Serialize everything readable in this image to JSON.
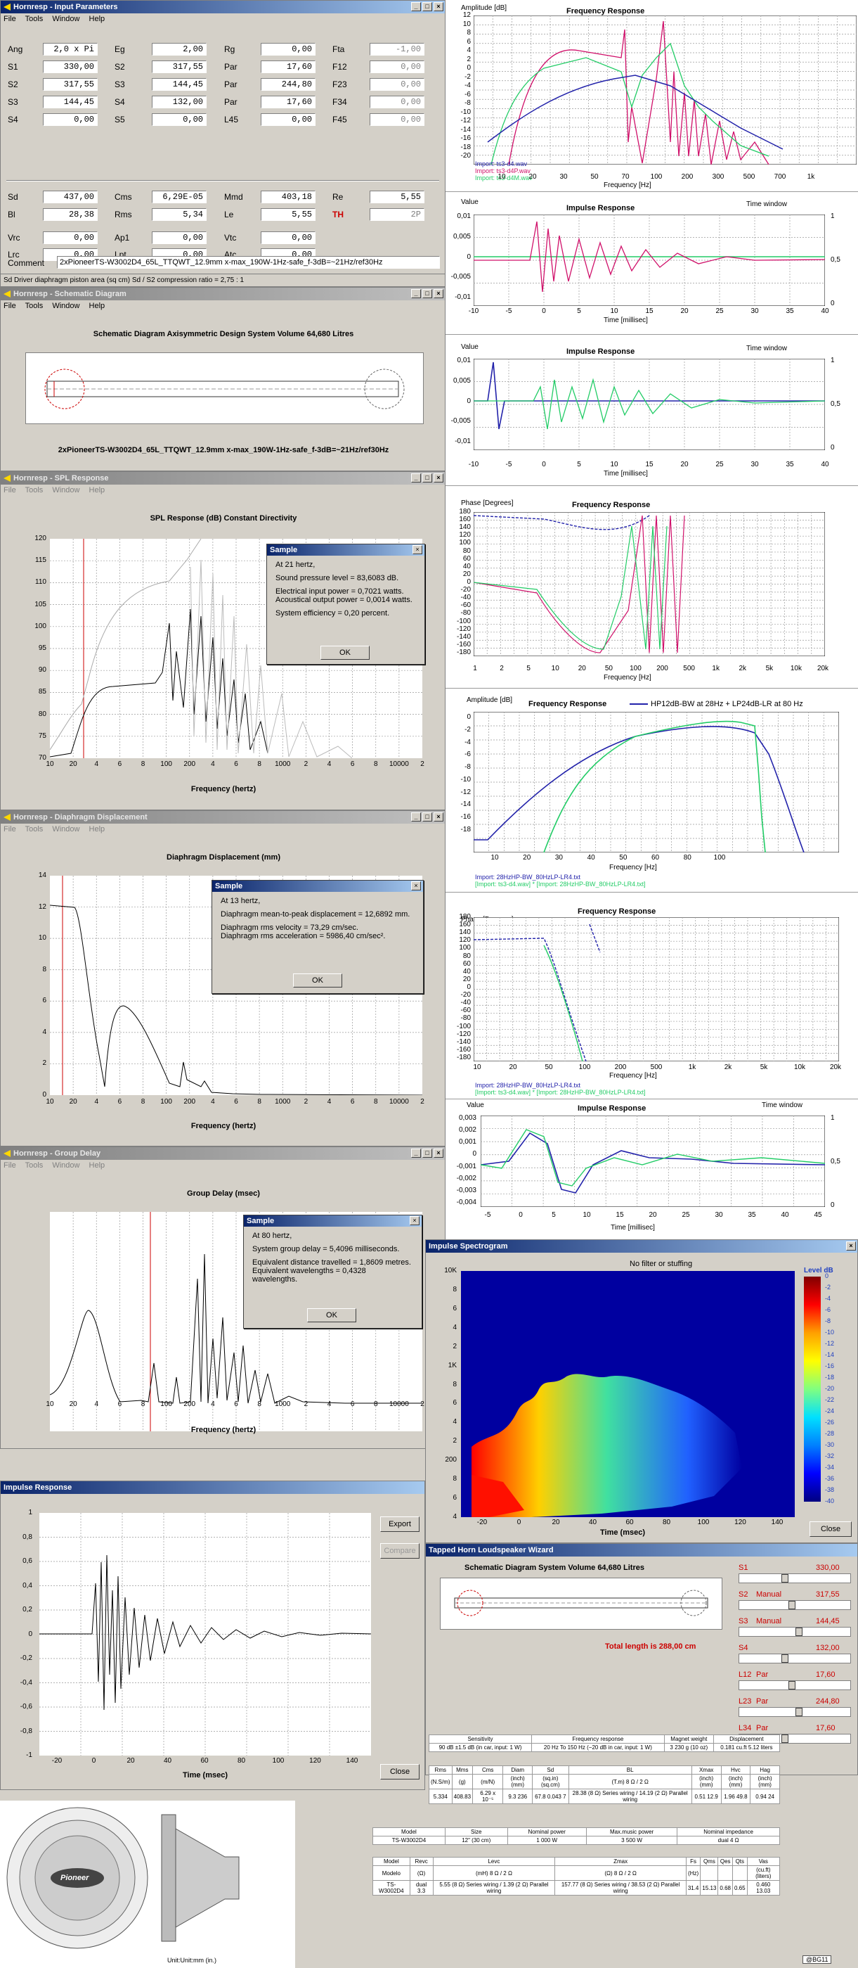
{
  "input_params": {
    "title": "Hornresp - Input Parameters",
    "menu": [
      "File",
      "Tools",
      "Window",
      "Help"
    ],
    "rows": [
      [
        [
          "Ang",
          "2,0 x Pi"
        ],
        [
          "Eg",
          "2,00"
        ],
        [
          "Rg",
          "0,00"
        ],
        [
          "Fta",
          "-1,00"
        ]
      ],
      [
        [
          "S1",
          "330,00"
        ],
        [
          "S2",
          "317,55"
        ],
        [
          "Par",
          "17,60"
        ],
        [
          "F12",
          "0,00"
        ]
      ],
      [
        [
          "S2",
          "317,55"
        ],
        [
          "S3",
          "144,45"
        ],
        [
          "Par",
          "244,80"
        ],
        [
          "F23",
          "0,00"
        ]
      ],
      [
        [
          "S3",
          "144,45"
        ],
        [
          "S4",
          "132,00"
        ],
        [
          "Par",
          "17,60"
        ],
        [
          "F34",
          "0,00"
        ]
      ],
      [
        [
          "S4",
          "0,00"
        ],
        [
          "S5",
          "0,00"
        ],
        [
          "L45",
          "0,00"
        ],
        [
          "F45",
          "0,00"
        ]
      ],
      [
        [
          "Sd",
          "437,00"
        ],
        [
          "Cms",
          "6,29E-05"
        ],
        [
          "Mmd",
          "403,18"
        ],
        [
          "Re",
          "5,55"
        ]
      ],
      [
        [
          "Bl",
          "28,38"
        ],
        [
          "Rms",
          "5,34"
        ],
        [
          "Le",
          "5,55"
        ],
        [
          "TH",
          "2P"
        ]
      ],
      [
        [
          "Vrc",
          "0,00"
        ],
        [
          "Ap1",
          "0,00"
        ],
        [
          "Vtc",
          "0,00"
        ]
      ],
      [
        [
          "Lrc",
          "0,00"
        ],
        [
          "Lpt",
          "0,00"
        ],
        [
          "Atc",
          "0,00"
        ]
      ]
    ],
    "comment_label": "Comment",
    "comment": "2xPioneerTS-W3002D4_65L_TTQWT_12.9mm x-max_190W-1Hz-safe_f-3dB=~21Hz/ref30Hz",
    "status": "Sd   Driver diaphragm piston area  (sq cm)   Sd / S2 compression ratio = 2,75 : 1"
  },
  "schematic": {
    "title": "Hornresp - Schematic Diagram",
    "menu": [
      "File",
      "Tools",
      "Window",
      "Help"
    ],
    "heading": "Schematic Diagram   Axisymmetric Design   System Volume 64,680 Litres",
    "caption": "2xPioneerTS-W3002D4_65L_TTQWT_12.9mm x-max_190W-1Hz-safe_f-3dB=~21Hz/ref30Hz"
  },
  "spl": {
    "title": "Hornresp - SPL Response",
    "menu": [
      "File",
      "Tools",
      "Window",
      "Help"
    ],
    "plot_title": "SPL Response  (dB)   Constant Directivity",
    "xlabel": "Frequency  (hertz)",
    "yticks": [
      "120",
      "115",
      "110",
      "105",
      "100",
      "95",
      "90",
      "85",
      "80",
      "75",
      "70"
    ],
    "xticks": [
      "10",
      "20",
      "4",
      "6",
      "8",
      "100",
      "200",
      "4",
      "6",
      "8",
      "1000",
      "2",
      "4",
      "6",
      "8",
      "10000",
      "2"
    ],
    "dialog": {
      "title": "Sample",
      "lines": [
        "At 21 hertz,",
        "Sound pressure level = 83,6083 dB.",
        "Electrical input power = 0,7021 watts.",
        "Acoustical output power = 0,0014 watts.",
        "System efficiency = 0,20 percent."
      ],
      "ok": "OK"
    }
  },
  "disp": {
    "title": "Hornresp - Diaphragm Displacement",
    "menu": [
      "File",
      "Tools",
      "Window",
      "Help"
    ],
    "plot_title": "Diaphragm Displacement  (mm)",
    "xlabel": "Frequency  (hertz)",
    "yticks": [
      "14",
      "12",
      "10",
      "8",
      "6",
      "4",
      "2",
      "0"
    ],
    "xticks": [
      "10",
      "20",
      "4",
      "6",
      "8",
      "100",
      "200",
      "4",
      "6",
      "8",
      "1000",
      "2",
      "4",
      "6",
      "8",
      "10000",
      "2"
    ],
    "dialog": {
      "title": "Sample",
      "lines": [
        "At 13 hertz,",
        "Diaphragm mean-to-peak displacement = 12,6892 mm.",
        "Diaphragm rms velocity = 73,29 cm/sec.",
        "Diaphragm rms acceleration = 5986,40 cm/sec²."
      ],
      "ok": "OK"
    }
  },
  "gd": {
    "title": "Hornresp - Group Delay",
    "menu": [
      "File",
      "Tools",
      "Window",
      "Help"
    ],
    "plot_title": "Group Delay  (msec)",
    "xlabel": "Frequency  (hertz)",
    "xticks": [
      "10",
      "20",
      "4",
      "6",
      "8",
      "100",
      "200",
      "4",
      "6",
      "8",
      "1000",
      "2",
      "4",
      "6",
      "8",
      "10000",
      "2"
    ],
    "dialog": {
      "title": "Sample",
      "lines": [
        "At 80 hertz,",
        "System group delay = 5,4096 milliseconds.",
        "Equivalent distance travelled = 1,8609 metres.",
        "Equivalent wavelengths = 0,4328 wavelengths."
      ],
      "ok": "OK"
    }
  },
  "ir": {
    "title": "Impulse Response",
    "yticks": [
      "1",
      "0,8",
      "0,6",
      "0,4",
      "0,2",
      "0",
      "-0,2",
      "-0,4",
      "-0,6",
      "-0,8",
      "-1"
    ],
    "xticks": [
      "-20",
      "0",
      "20",
      "40",
      "60",
      "80",
      "100",
      "120",
      "140"
    ],
    "xlabel": "Time  (msec)",
    "export": "Export",
    "compare": "Compare",
    "close": "Close"
  },
  "rew_fr": {
    "ylabel": "Amplitude [dB]",
    "title": "Frequency Response",
    "yticks": [
      "12",
      "10",
      "8",
      "6",
      "4",
      "2",
      "0",
      "-2",
      "-4",
      "-6",
      "-8",
      "-10",
      "-12",
      "-14",
      "-16",
      "-18",
      "-20"
    ],
    "xticks": [
      "10",
      "20",
      "30",
      "50",
      "70",
      "100",
      "200",
      "300",
      "500",
      "700",
      "1k"
    ],
    "xlabel": "Frequency [Hz]",
    "legend": [
      "Import: ts3-d4.wav",
      "Import: ts3-d4P.wav",
      "Import: ts3-d4M.wav"
    ]
  },
  "rew_ir1": {
    "ylabel": "Value",
    "title": "Impulse Response",
    "tw": "Time window",
    "yticks": [
      "0,01",
      "0,005",
      "0",
      "-0,005",
      "-0,01"
    ],
    "xticks": [
      "-10",
      "-5",
      "0",
      "5",
      "10",
      "15",
      "20",
      "25",
      "30",
      "35",
      "40"
    ],
    "xlabel": "Time [millisec]",
    "rticks": [
      "1",
      "0,5",
      "0"
    ]
  },
  "rew_ir2": {
    "ylabel": "Value",
    "title": "Impulse Response",
    "tw": "Time window",
    "yticks": [
      "0,01",
      "0,005",
      "0",
      "-0,005",
      "-0,01"
    ],
    "xticks": [
      "-10",
      "-5",
      "0",
      "5",
      "10",
      "15",
      "20",
      "25",
      "30",
      "35",
      "40"
    ],
    "xlabel": "Time [millisec]",
    "rticks": [
      "1",
      "0,5",
      "0"
    ]
  },
  "rew_phase1": {
    "ylabel": "Phase [Degrees]",
    "title": "Frequency Response",
    "yticks": [
      "180",
      "160",
      "140",
      "120",
      "100",
      "80",
      "60",
      "40",
      "20",
      "0",
      "-20",
      "-40",
      "-60",
      "-80",
      "-100",
      "-120",
      "-140",
      "-160",
      "-180"
    ],
    "xticks": [
      "1",
      "2",
      "5",
      "10",
      "20",
      "50",
      "100",
      "200",
      "500",
      "1k",
      "2k",
      "5k",
      "10k",
      "20k"
    ],
    "xlabel": "Frequency [Hz]"
  },
  "rew_fr2": {
    "ylabel": "Amplitude [dB]",
    "title": "Frequency Response",
    "legend_top": "HP12dB-BW at 28Hz + LP24dB-LR at 80 Hz",
    "yticks": [
      "0",
      "-2",
      "-4",
      "-6",
      "-8",
      "-10",
      "-12",
      "-14",
      "-16",
      "-18"
    ],
    "xticks": [
      "10",
      "20",
      "30",
      "40",
      "50",
      "60",
      "80",
      "100"
    ],
    "xlabel": "Frequency [Hz]",
    "legend": [
      "Import: 28HzHP-BW_80HzLP-LR4.txt",
      "[Import: ts3-d4.wav] * [Import: 28HzHP-BW_80HzLP-LR4.txt]"
    ]
  },
  "rew_phase2": {
    "ylabel": "Phase [Degrees]",
    "title": "Frequency Response",
    "yticks": [
      "180",
      "160",
      "140",
      "120",
      "100",
      "80",
      "60",
      "40",
      "20",
      "0",
      "-20",
      "-40",
      "-60",
      "-80",
      "-100",
      "-120",
      "-140",
      "-160",
      "-180"
    ],
    "xticks": [
      "10",
      "20",
      "50",
      "100",
      "200",
      "500",
      "1k",
      "2k",
      "5k",
      "10k",
      "20k"
    ],
    "xlabel": "Frequency [Hz]",
    "legend": [
      "Import: 28HzHP-BW_80HzLP-LR4.txt",
      "[Import: ts3-d4.wav] * [Import: 28HzHP-BW_80HzLP-LR4.txt]"
    ]
  },
  "rew_ir3": {
    "ylabel": "Value",
    "title": "Impulse Response",
    "tw": "Time window",
    "yticks": [
      "0,003",
      "0,002",
      "0,001",
      "0",
      "-0,001",
      "-0,002",
      "-0,003",
      "-0,004"
    ],
    "xticks": [
      "-5",
      "0",
      "5",
      "10",
      "15",
      "20",
      "25",
      "30",
      "35",
      "40",
      "45"
    ],
    "xlabel": "Time [millisec]",
    "rticks": [
      "1",
      "0,5",
      "0"
    ]
  },
  "spectro": {
    "title": "Impulse Spectrogram",
    "subtitle": "No filter or stuffing",
    "level_label": "Level  dB",
    "levels": [
      "0",
      "-2",
      "-4",
      "-6",
      "-8",
      "-10",
      "-12",
      "-14",
      "-16",
      "-18",
      "-20",
      "-22",
      "-24",
      "-26",
      "-28",
      "-30",
      "-32",
      "-34",
      "-36",
      "-38",
      "-40"
    ],
    "yticks": [
      "10K",
      "8",
      "6",
      "4",
      "2",
      "1K",
      "8",
      "6",
      "4",
      "2",
      "200",
      "8",
      "6",
      "4"
    ],
    "xticks": [
      "-20",
      "0",
      "20",
      "40",
      "60",
      "80",
      "100",
      "120",
      "140"
    ],
    "xlabel": "Time  (msec)",
    "close": "Close"
  },
  "wizard": {
    "title": "Tapped Horn Loudspeaker Wizard",
    "heading": "Schematic Diagram   System Volume 64,680 Litres",
    "total": "Total length is 288,00 cm",
    "params": [
      {
        "name": "S1",
        "mode": "",
        "value": "330,00"
      },
      {
        "name": "S2",
        "mode": "Manual",
        "value": "317,55"
      },
      {
        "name": "S3",
        "mode": "Manual",
        "value": "144,45"
      },
      {
        "name": "S4",
        "mode": "",
        "value": "132,00"
      },
      {
        "name": "L12",
        "mode": "Par",
        "value": "17,60"
      },
      {
        "name": "L23",
        "mode": "Par",
        "value": "244,80"
      },
      {
        "name": "L34",
        "mode": "Par",
        "value": "17,60"
      }
    ]
  },
  "spec": {
    "t1_head": [
      "Sensitivity",
      "Frequency response",
      "Magnet weight",
      "Displacement"
    ],
    "t1_row": [
      "90 dB ±1.5 dB (in car, input: 1 W)",
      "20 Hz To 150 Hz (−20 dB in car, input: 1 W)",
      "3 230 g (10 oz)",
      "0.181 cu.ft 5.12 liters"
    ],
    "t2_head": [
      "Rms",
      "Mms",
      "Cms",
      "Diam",
      "Sd",
      "BL",
      "Xmax",
      "Hvc",
      "Hag"
    ],
    "t2_units": [
      "(N.S/m)",
      "(g)",
      "(m/N)",
      "(inch)(mm)",
      "(sq.in)(sq.cm)",
      "(T.m) 8 Ω / 2 Ω",
      "(inch)(mm)",
      "(inch)(mm)",
      "(inch)(mm)"
    ],
    "t2_row": [
      "5.334",
      "408.83",
      "6.29 x 10⁻⁵",
      "9.3 236",
      "67.8 0.043 7",
      "28.38 (8 Ω) Series wiring / 14.19 (2 Ω) Parallel wiring",
      "0.51 12.9",
      "1.96 49.8",
      "0.94 24"
    ],
    "t3_head": [
      "Model",
      "Size",
      "Nominal power",
      "Max.music power",
      "Nominal impedance"
    ],
    "t3_row": [
      "TS-W3002D4",
      "12\" (30 cm)",
      "1 000 W",
      "3 500 W",
      "dual 4 Ω"
    ],
    "t4_head": [
      "Model",
      "Revc",
      "Levc",
      "Zmax",
      "Fs",
      "Qms",
      "Qes",
      "Qts",
      "Vas"
    ],
    "t4_units": [
      "Modelo",
      "(Ω)",
      "(mH) 8 Ω / 2 Ω",
      "(Ω) 8 Ω / 2 Ω",
      "(Hz)",
      "",
      "",
      "",
      "(cu.ft)(liters)"
    ],
    "t4_row": [
      "TS-W3002D4",
      "dual 3.3",
      "5.55 (8 Ω) Series wiring / 1.39 (2 Ω) Parallel wiring",
      "157.77 (8 Ω) Series wiring / 38.53 (2 Ω) Parallel wiring",
      "31.4",
      "15.13",
      "0.68",
      "0.65",
      "0.460 13.03"
    ]
  },
  "drawing": {
    "brand": "Pioneer",
    "unit": "Unit:Unit:mm (in.)"
  },
  "watermark": "@BG11"
}
